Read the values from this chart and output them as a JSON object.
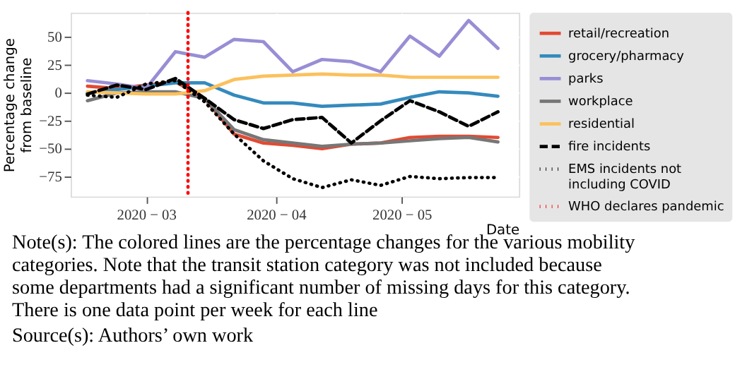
{
  "chart_data": {
    "type": "line",
    "xlabel": "Date",
    "ylabel": "Percentage change from baseline",
    "x": [
      "2020-02-16",
      "2020-02-23",
      "2020-03-01",
      "2020-03-08",
      "2020-03-15",
      "2020-03-22",
      "2020-03-29",
      "2020-04-05",
      "2020-04-12",
      "2020-04-19",
      "2020-04-26",
      "2020-05-03",
      "2020-05-10",
      "2020-05-17",
      "2020-05-24"
    ],
    "series": [
      {
        "name": "retail/recreation",
        "color": "#e24a33",
        "line_style": "solid",
        "values": [
          6,
          4,
          7,
          10,
          -5,
          -37,
          -45,
          -47,
          -50,
          -46,
          -45,
          -40,
          -39,
          -39,
          -40
        ]
      },
      {
        "name": "grocery/pharmacy",
        "color": "#348abd",
        "line_style": "solid",
        "values": [
          0,
          3,
          6,
          9,
          9,
          -2,
          -9,
          -9,
          -12,
          -11,
          -10,
          -4,
          1,
          0,
          -3
        ]
      },
      {
        "name": "parks",
        "color": "#988ed5",
        "line_style": "solid",
        "values": [
          11,
          8,
          4,
          37,
          32,
          48,
          46,
          19,
          30,
          28,
          19,
          51,
          33,
          65,
          40
        ]
      },
      {
        "name": "workplace",
        "color": "#777777",
        "line_style": "solid",
        "values": [
          -7,
          0,
          1,
          1,
          -5,
          -33,
          -42,
          -45,
          -48,
          -46,
          -45,
          -43,
          -41,
          -40,
          -44
        ]
      },
      {
        "name": "residential",
        "color": "#fbc15e",
        "line_style": "solid",
        "values": [
          1,
          0,
          -1,
          -1,
          2,
          12,
          15,
          16,
          17,
          16,
          16,
          14,
          14,
          14,
          14
        ]
      },
      {
        "name": "fire incidents",
        "color": "#000000",
        "line_style": "dashed",
        "values": [
          -1,
          7,
          3,
          13,
          -5,
          -24,
          -32,
          -24,
          -22,
          -45,
          -25,
          -7,
          -17,
          -30,
          -17
        ]
      },
      {
        "name": "EMS incidents not including COVID",
        "color": "#000000",
        "line_style": "dotted",
        "values": [
          -2,
          -4,
          8,
          11,
          -8,
          -37,
          -61,
          -77,
          -85,
          -78,
          -83,
          -75,
          -77,
          -76,
          -76
        ]
      }
    ],
    "ref_lines": [
      {
        "axis": "x",
        "value": "2020-03-11",
        "label": "WHO declares pandemic",
        "color": "#ff0000",
        "line_style": "dotted"
      }
    ],
    "xlim": [
      "2020-02-12",
      "2020-05-29"
    ],
    "xticks": [
      {
        "value": "2020-03-01",
        "label": "2020 − 03"
      },
      {
        "value": "2020-04-01",
        "label": "2020 − 04"
      },
      {
        "value": "2020-05-01",
        "label": "2020 − 05"
      }
    ],
    "ylim": [
      -93,
      72
    ],
    "yticks": [
      {
        "value": -75,
        "label": "−75"
      },
      {
        "value": -50,
        "label": "−50"
      },
      {
        "value": -25,
        "label": "−25"
      },
      0,
      25,
      50
    ],
    "grid": true,
    "legend": "right",
    "annotations": [
      "Note(s): The colored lines are the percentage changes for the various mobility categories. Note that the transit station category was not included because some departments had a significant number of missing days for this category. There is one data point per week for each line",
      "Source(s): Authors’ own work"
    ]
  }
}
